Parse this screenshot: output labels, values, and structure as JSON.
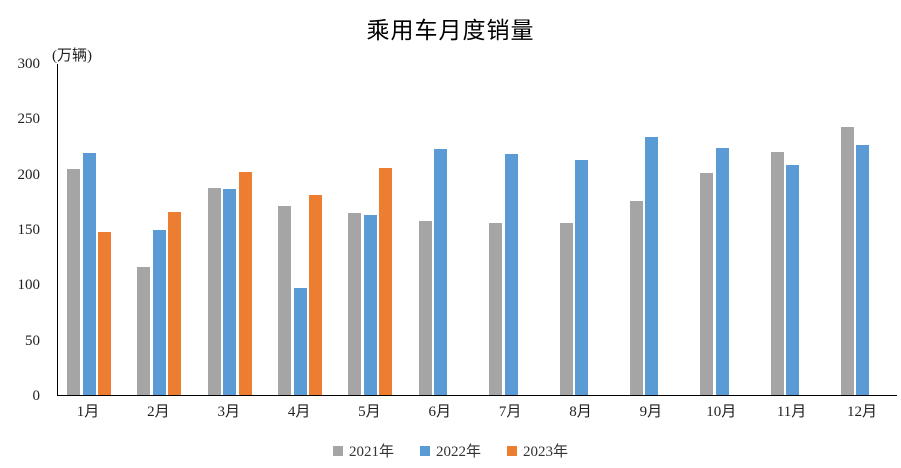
{
  "chart_data": {
    "type": "bar",
    "title": "乘用车月度销量",
    "unit_label": "(万辆)",
    "xlabel": "",
    "ylabel": "万辆",
    "categories": [
      "1月",
      "2月",
      "3月",
      "4月",
      "5月",
      "6月",
      "7月",
      "8月",
      "9月",
      "10月",
      "11月",
      "12月"
    ],
    "series": [
      {
        "name": "2021年",
        "color": "#A5A5A5",
        "values": [
          204.5,
          115.6,
          187.4,
          170.4,
          164.6,
          156.9,
          155.1,
          155.2,
          175.1,
          200.7,
          219.2,
          242.2
        ]
      },
      {
        "name": "2022年",
        "color": "#5B9BD5",
        "values": [
          218.6,
          148.7,
          186.4,
          96.5,
          162.3,
          222.2,
          217.4,
          212.5,
          233.2,
          223.1,
          207.5,
          226.3
        ]
      },
      {
        "name": "2023年",
        "color": "#ED7D31",
        "values": [
          146.9,
          165.3,
          201.7,
          181.1,
          204.8,
          null,
          null,
          null,
          null,
          null,
          null,
          null
        ]
      }
    ],
    "ylim": [
      0,
      300
    ],
    "yticks": [
      0,
      50,
      100,
      150,
      200,
      250,
      300
    ],
    "grid": false,
    "legend_position": "bottom"
  }
}
